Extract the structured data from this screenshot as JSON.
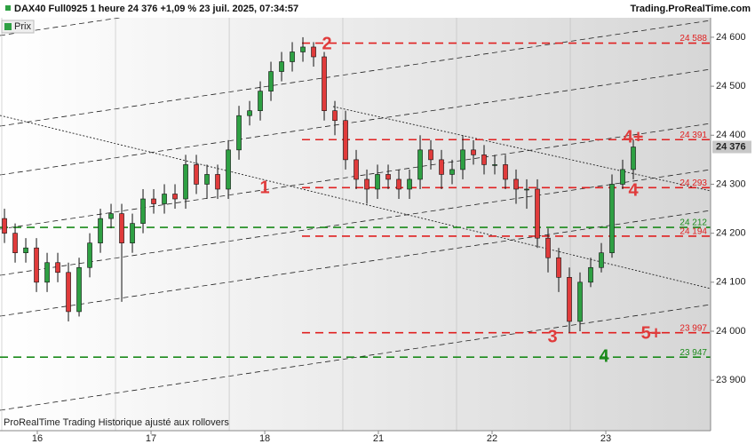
{
  "chart_data": {
    "type": "candlestick",
    "title": "DAX40 Full0925 1 heure 24 376 +1,09 % 23 juil. 2025, 07:34:57",
    "source": "Trading.ProRealTime.com",
    "legend": "Prix",
    "footer": "ProRealTime Trading  Historique ajusté aux rollovers",
    "x": [
      0,
      1,
      2,
      3,
      4,
      5,
      6,
      7,
      8,
      9,
      10,
      11,
      12,
      13,
      14,
      15,
      16,
      17,
      18,
      19,
      20,
      21,
      22,
      23,
      24,
      25,
      26,
      27,
      28,
      29,
      30,
      31,
      32,
      33,
      34,
      35,
      36,
      37,
      38,
      39,
      40,
      41,
      42,
      43,
      44,
      45,
      46,
      47,
      48,
      49,
      50,
      51,
      52,
      53,
      54,
      55,
      56,
      57,
      58,
      59
    ],
    "open": [
      24230,
      24200,
      24160,
      24170,
      24100,
      24140,
      24120,
      24040,
      24130,
      24180,
      24230,
      24240,
      24180,
      24220,
      24270,
      24260,
      24280,
      24270,
      24340,
      24300,
      24320,
      24290,
      24370,
      24440,
      24450,
      24490,
      24530,
      24550,
      24570,
      24580,
      24560,
      24450,
      24430,
      24350,
      24310,
      24290,
      24320,
      24310,
      24290,
      24310,
      24370,
      24350,
      24320,
      24330,
      24370,
      24360,
      24340,
      24340,
      24310,
      24290,
      24290,
      24190,
      24150,
      24110,
      24020,
      24100,
      24130,
      24160,
      24300,
      24330
    ],
    "high": [
      24250,
      24220,
      24190,
      24190,
      24160,
      24160,
      24140,
      24150,
      24200,
      24250,
      24260,
      24260,
      24240,
      24290,
      24290,
      24300,
      24300,
      24360,
      24360,
      24340,
      24340,
      24390,
      24460,
      24470,
      24510,
      24550,
      24570,
      24590,
      24600,
      24590,
      24570,
      24470,
      24450,
      24370,
      24330,
      24340,
      24340,
      24330,
      24330,
      24400,
      24390,
      24370,
      24350,
      24400,
      24390,
      24380,
      24360,
      24360,
      24330,
      24310,
      24310,
      24210,
      24170,
      24130,
      24120,
      24150,
      24180,
      24320,
      24350,
      24391
    ],
    "low": [
      24180,
      24140,
      24140,
      24080,
      24080,
      24100,
      24020,
      24030,
      24110,
      24160,
      24210,
      24060,
      24160,
      24200,
      24240,
      24240,
      24250,
      24250,
      24280,
      24270,
      24270,
      24270,
      24350,
      24420,
      24430,
      24470,
      24510,
      24530,
      24550,
      24540,
      24430,
      24400,
      24330,
      24290,
      24260,
      24270,
      24290,
      24270,
      24270,
      24290,
      24330,
      24290,
      24300,
      24310,
      24340,
      24320,
      24320,
      24290,
      24260,
      24250,
      24170,
      24120,
      24080,
      23997,
      24000,
      24090,
      24120,
      24150,
      24290,
      24310
    ],
    "close": [
      24200,
      24160,
      24170,
      24100,
      24140,
      24120,
      24040,
      24130,
      24180,
      24230,
      24240,
      24180,
      24220,
      24270,
      24260,
      24280,
      24270,
      24340,
      24300,
      24320,
      24290,
      24370,
      24440,
      24450,
      24490,
      24530,
      24550,
      24570,
      24580,
      24560,
      24450,
      24430,
      24350,
      24310,
      24290,
      24320,
      24310,
      24290,
      24310,
      24370,
      24350,
      24320,
      24330,
      24370,
      24360,
      24340,
      24340,
      24310,
      24290,
      24290,
      24190,
      24150,
      24110,
      24020,
      24100,
      24130,
      24160,
      24300,
      24330,
      24376
    ],
    "up_color": "#2ea043",
    "down_color": "#e03b3b",
    "xlim": [
      -0.42,
      66.25
    ],
    "xticks": [
      {
        "value": 3.08,
        "label": "16"
      },
      {
        "value": 13.75,
        "label": "17"
      },
      {
        "value": 24.42,
        "label": "18"
      },
      {
        "value": 35.08,
        "label": "21"
      },
      {
        "value": 45.75,
        "label": "22"
      },
      {
        "value": 56.42,
        "label": "23"
      }
    ],
    "ylim": [
      23797,
      24676
    ],
    "yticks": [
      {
        "value": 23900,
        "label": "23 900"
      },
      {
        "value": 24000,
        "label": "24 000"
      },
      {
        "value": 24100,
        "label": "24 100"
      },
      {
        "value": 24200,
        "label": "24 200"
      },
      {
        "value": 24300,
        "label": "24 300"
      },
      {
        "value": 24400,
        "label": "24 400"
      },
      {
        "value": 24500,
        "label": "24 500"
      },
      {
        "value": 24600,
        "label": "24 600"
      }
    ],
    "last_price": {
      "value": 24376,
      "label": "24 376"
    },
    "levels": [
      {
        "value": 24588,
        "label": "24 588",
        "color": "#e02020"
      },
      {
        "value": 24391,
        "label": "24 391",
        "color": "#e02020"
      },
      {
        "value": 24293,
        "label": "24 293",
        "color": "#e02020"
      },
      {
        "value": 24212,
        "label": "24 212",
        "color": "#1a8a1a"
      },
      {
        "value": 24194,
        "label": "24 194",
        "color": "#e02020"
      },
      {
        "value": 23997,
        "label": "23 997",
        "color": "#e02020"
      },
      {
        "value": 23947,
        "label": "23 947",
        "color": "#1a8a1a"
      }
    ],
    "annotations": [
      {
        "text": "2",
        "color": "#e03b3b"
      },
      {
        "text": "1",
        "color": "#e03b3b"
      },
      {
        "text": "3",
        "color": "#e03b3b"
      },
      {
        "text": "4",
        "color": "#e03b3b"
      },
      {
        "text": "4+",
        "color": "#e03b3b"
      },
      {
        "text": "5+",
        "color": "#e03b3b"
      },
      {
        "text": "4",
        "color": "#1a8a1a"
      }
    ]
  }
}
